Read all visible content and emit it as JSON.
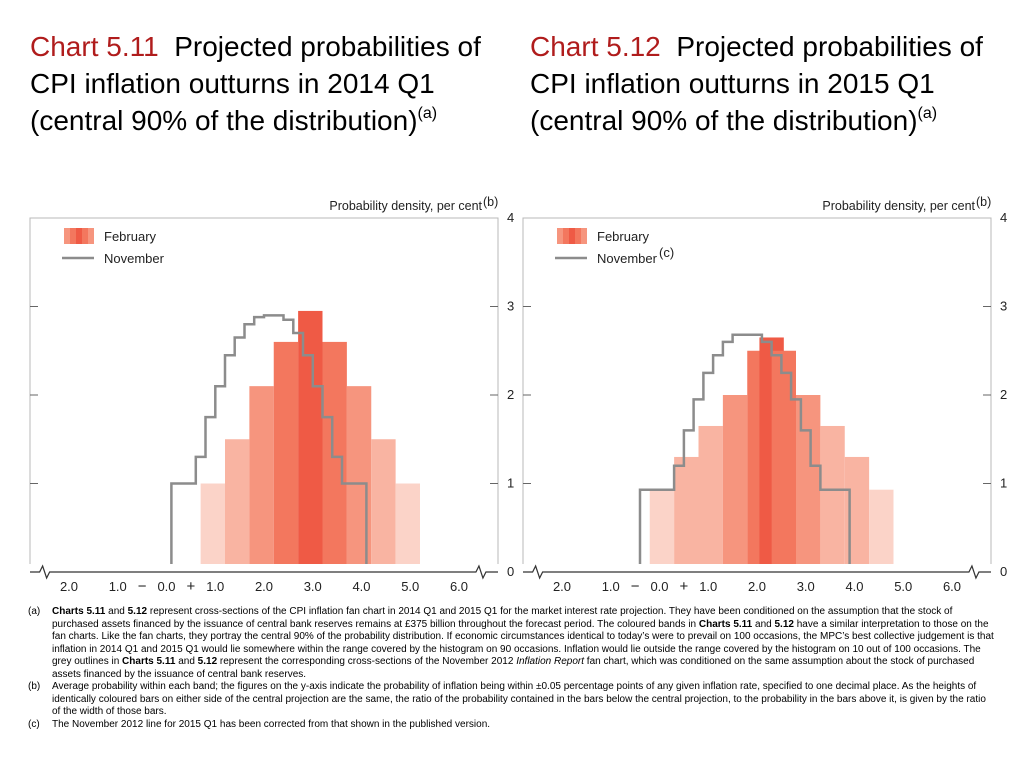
{
  "titles": [
    {
      "num": "Chart 5.11",
      "text": "Projected probabilities of CPI inflation outturns in 2014 Q1 (central 90% of the distribution)",
      "note": "(a)"
    },
    {
      "num": "Chart 5.12",
      "text": "Projected probabilities of CPI inflation outturns in 2015 Q1 (central 90% of the distribution)",
      "note": "(a)"
    }
  ],
  "colors": {
    "title_accent": "#b01c1c",
    "bands": [
      "#fbd3c8",
      "#f9b4a2",
      "#f6957e",
      "#f3775e",
      "#ef5a45"
    ],
    "november_line": "#8c8c8c"
  },
  "chart_data": [
    {
      "type": "bar",
      "ylabel": "Probability density, per cent",
      "ylabel_note": "(b)",
      "ylim": [
        0,
        4
      ],
      "yticks": [
        "0",
        "1",
        "2",
        "3",
        "4"
      ],
      "xlim": [
        -2.8,
        6.8
      ],
      "xticks": [
        {
          "value": -2.0,
          "label": "2.0"
        },
        {
          "value": -1.0,
          "label": "1.0"
        },
        {
          "value": 0.0,
          "label": "0.0"
        },
        {
          "value": 1.0,
          "label": "1.0"
        },
        {
          "value": 2.0,
          "label": "2.0"
        },
        {
          "value": 3.0,
          "label": "3.0"
        },
        {
          "value": 4.0,
          "label": "4.0"
        },
        {
          "value": 5.0,
          "label": "5.0"
        },
        {
          "value": 6.0,
          "label": "6.0"
        }
      ],
      "minus_sign": "−",
      "plus_sign": "+",
      "legend": [
        {
          "label": "February",
          "note": "",
          "kind": "bands"
        },
        {
          "label": "November",
          "note": "",
          "kind": "line"
        }
      ],
      "bar_width": 0.5,
      "bars": [
        {
          "x": 0.95,
          "y": 1.0,
          "band": 0
        },
        {
          "x": 1.45,
          "y": 1.5,
          "band": 1
        },
        {
          "x": 1.95,
          "y": 2.1,
          "band": 2
        },
        {
          "x": 2.45,
          "y": 2.6,
          "band": 3
        },
        {
          "x": 2.95,
          "y": 2.95,
          "band": 4
        },
        {
          "x": 3.45,
          "y": 2.6,
          "band": 3
        },
        {
          "x": 3.95,
          "y": 2.1,
          "band": 2
        },
        {
          "x": 4.45,
          "y": 1.5,
          "band": 1
        },
        {
          "x": 4.95,
          "y": 1.0,
          "band": 0
        }
      ],
      "november": [
        [
          0.1,
          0
        ],
        [
          0.1,
          1.0
        ],
        [
          0.6,
          1.0
        ],
        [
          0.6,
          1.3
        ],
        [
          0.8,
          1.3
        ],
        [
          0.8,
          1.75
        ],
        [
          1.0,
          1.75
        ],
        [
          1.0,
          2.1
        ],
        [
          1.2,
          2.1
        ],
        [
          1.2,
          2.45
        ],
        [
          1.4,
          2.45
        ],
        [
          1.4,
          2.65
        ],
        [
          1.6,
          2.65
        ],
        [
          1.6,
          2.8
        ],
        [
          1.8,
          2.8
        ],
        [
          1.8,
          2.88
        ],
        [
          2.0,
          2.88
        ],
        [
          2.0,
          2.9
        ],
        [
          2.4,
          2.9
        ],
        [
          2.4,
          2.85
        ],
        [
          2.6,
          2.85
        ],
        [
          2.6,
          2.7
        ],
        [
          2.8,
          2.7
        ],
        [
          2.8,
          2.45
        ],
        [
          3.0,
          2.45
        ],
        [
          3.0,
          2.1
        ],
        [
          3.2,
          2.1
        ],
        [
          3.2,
          1.75
        ],
        [
          3.4,
          1.75
        ],
        [
          3.4,
          1.3
        ],
        [
          3.6,
          1.3
        ],
        [
          3.6,
          1.0
        ],
        [
          4.1,
          1.0
        ],
        [
          4.1,
          0
        ]
      ]
    },
    {
      "type": "bar",
      "ylabel": "Probability density, per cent",
      "ylabel_note": "(b)",
      "ylim": [
        0,
        4
      ],
      "yticks": [
        "0",
        "1",
        "2",
        "3",
        "4"
      ],
      "xlim": [
        -2.8,
        6.8
      ],
      "xticks": [
        {
          "value": -2.0,
          "label": "2.0"
        },
        {
          "value": -1.0,
          "label": "1.0"
        },
        {
          "value": 0.0,
          "label": "0.0"
        },
        {
          "value": 1.0,
          "label": "1.0"
        },
        {
          "value": 2.0,
          "label": "2.0"
        },
        {
          "value": 3.0,
          "label": "3.0"
        },
        {
          "value": 4.0,
          "label": "4.0"
        },
        {
          "value": 5.0,
          "label": "5.0"
        },
        {
          "value": 6.0,
          "label": "6.0"
        }
      ],
      "minus_sign": "−",
      "plus_sign": "+",
      "legend": [
        {
          "label": "February",
          "note": "",
          "kind": "bands"
        },
        {
          "label": "November",
          "note": "(c)",
          "kind": "line"
        }
      ],
      "bar_width": 0.5,
      "bars": [
        {
          "x": 0.05,
          "y": 0.93,
          "band": 0
        },
        {
          "x": 0.55,
          "y": 1.3,
          "band": 1
        },
        {
          "x": 1.05,
          "y": 1.65,
          "band": 1
        },
        {
          "x": 1.55,
          "y": 2.0,
          "band": 2
        },
        {
          "x": 2.05,
          "y": 2.5,
          "band": 3
        },
        {
          "x": 2.3,
          "y": 2.65,
          "band": 4
        },
        {
          "x": 2.55,
          "y": 2.5,
          "band": 3
        },
        {
          "x": 3.05,
          "y": 2.0,
          "band": 2
        },
        {
          "x": 3.55,
          "y": 1.65,
          "band": 1
        },
        {
          "x": 4.05,
          "y": 1.3,
          "band": 1
        },
        {
          "x": 4.55,
          "y": 0.93,
          "band": 0
        }
      ],
      "november": [
        [
          -0.4,
          0
        ],
        [
          -0.4,
          0.93
        ],
        [
          0.3,
          0.93
        ],
        [
          0.3,
          1.2
        ],
        [
          0.5,
          1.2
        ],
        [
          0.5,
          1.6
        ],
        [
          0.7,
          1.6
        ],
        [
          0.7,
          1.95
        ],
        [
          0.9,
          1.95
        ],
        [
          0.9,
          2.25
        ],
        [
          1.1,
          2.25
        ],
        [
          1.1,
          2.45
        ],
        [
          1.3,
          2.45
        ],
        [
          1.3,
          2.6
        ],
        [
          1.5,
          2.6
        ],
        [
          1.5,
          2.68
        ],
        [
          2.1,
          2.68
        ],
        [
          2.1,
          2.6
        ],
        [
          2.3,
          2.6
        ],
        [
          2.3,
          2.45
        ],
        [
          2.5,
          2.45
        ],
        [
          2.5,
          2.25
        ],
        [
          2.7,
          2.25
        ],
        [
          2.7,
          1.95
        ],
        [
          2.9,
          1.95
        ],
        [
          2.9,
          1.6
        ],
        [
          3.1,
          1.6
        ],
        [
          3.1,
          1.2
        ],
        [
          3.3,
          1.2
        ],
        [
          3.3,
          0.93
        ],
        [
          3.9,
          0.93
        ],
        [
          3.9,
          0
        ]
      ]
    }
  ],
  "footnotes": [
    {
      "label": "(a)",
      "parts": [
        {
          "t": "Charts 5.11",
          "s": "b"
        },
        {
          "t": " and ",
          "s": ""
        },
        {
          "t": "5.12",
          "s": "b"
        },
        {
          "t": " represent cross-sections of the CPI inflation fan chart in 2014 Q1 and 2015 Q1 for the market interest rate projection.  They have been conditioned on the assumption that the stock of purchased assets financed by the issuance of central bank reserves remains at £375 billion throughout the forecast period.  The coloured bands in ",
          "s": ""
        },
        {
          "t": "Charts 5.11",
          "s": "b"
        },
        {
          "t": " and ",
          "s": ""
        },
        {
          "t": "5.12",
          "s": "b"
        },
        {
          "t": " have a similar interpretation to those on the fan charts.  Like the fan charts, they portray the central 90% of the probability distribution.  If economic circumstances identical to today’s were to prevail on 100 occasions, the MPC’s best collective judgement is that inflation in 2014 Q1 and 2015 Q1 would lie somewhere within the range covered by the histogram on 90 occasions.  Inflation would lie outside the range covered by the histogram on 10 out of 100 occasions.  The grey outlines in ",
          "s": ""
        },
        {
          "t": "Charts 5.11",
          "s": "b"
        },
        {
          "t": " and ",
          "s": ""
        },
        {
          "t": "5.12",
          "s": "b"
        },
        {
          "t": " represent the corresponding cross-sections of the November 2012 ",
          "s": ""
        },
        {
          "t": "Inflation Report",
          "s": "i"
        },
        {
          "t": " fan chart, which was conditioned on the same assumption about the stock of purchased assets financed by the issuance of central bank reserves.",
          "s": ""
        }
      ]
    },
    {
      "label": "(b)",
      "parts": [
        {
          "t": "Average probability within each band;  the figures on the y-axis indicate the probability of inflation being within ±0.05 percentage points of any given inflation rate, specified to one decimal place.  As the heights of identically coloured bars on either side of the central projection are the same, the ratio of the probability contained in the bars below the central projection, to the probability in the bars above it, is given by the ratio of the width of those bars.",
          "s": ""
        }
      ]
    },
    {
      "label": "(c)",
      "parts": [
        {
          "t": "The November 2012 line for 2015 Q1 has been corrected from that shown in the published version.",
          "s": ""
        }
      ]
    }
  ]
}
